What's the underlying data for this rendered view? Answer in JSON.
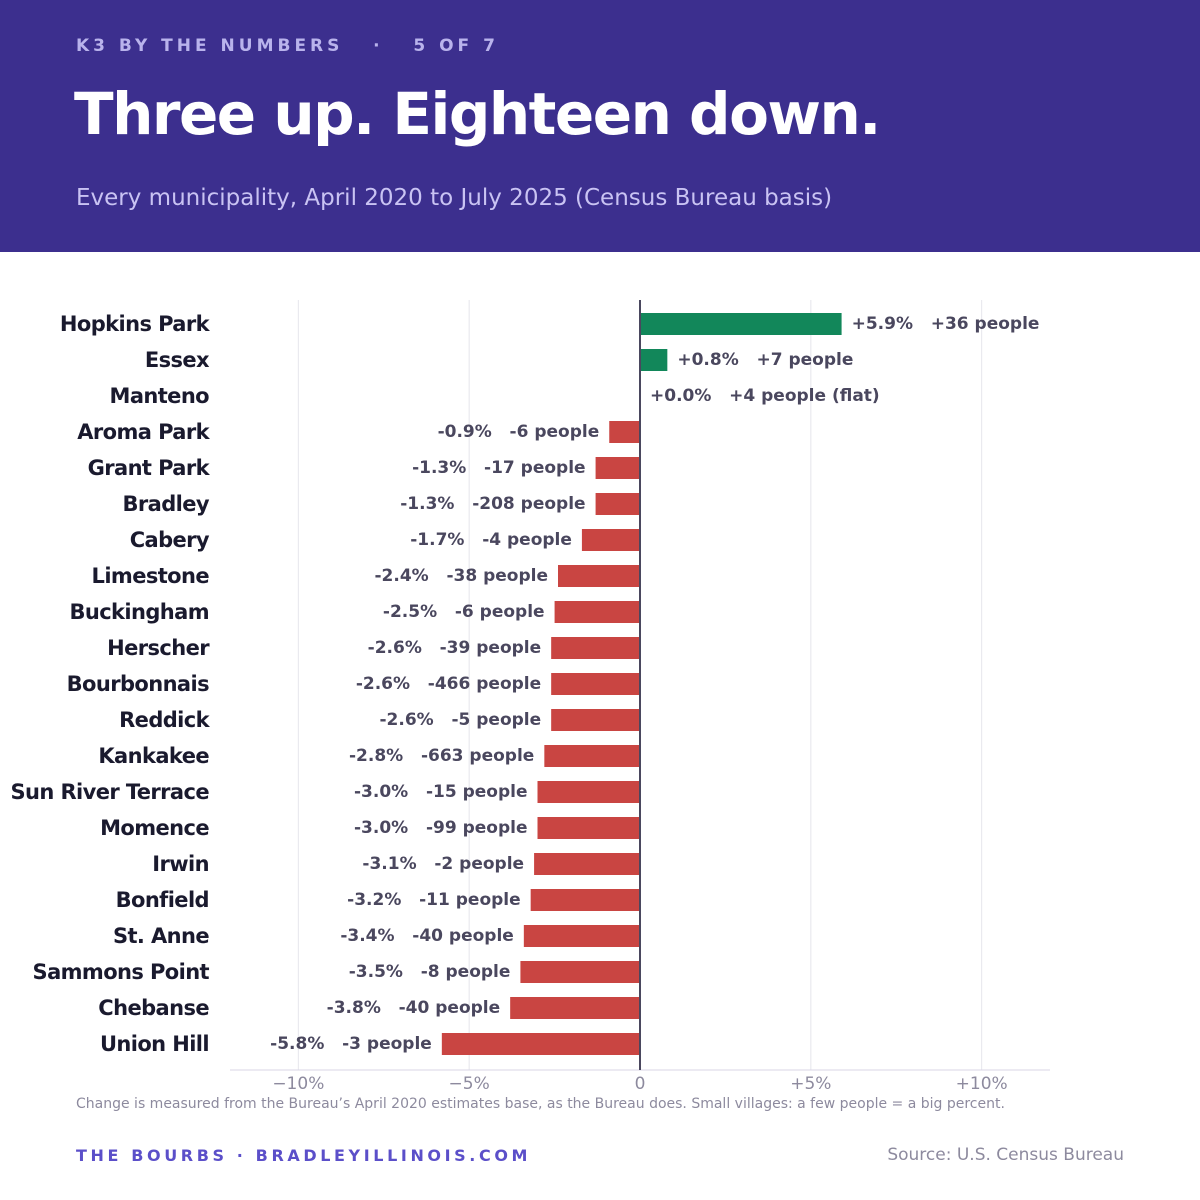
{
  "header": {
    "kicker": "K3 BY THE NUMBERS   ·   5 OF 7",
    "title": "Three up. Eighteen down.",
    "subtitle": "Every municipality, April 2020 to July 2025 (Census Bureau basis)"
  },
  "footer": {
    "note": "Change is measured from the Bureau’s April 2020 estimates base, as the Bureau does. Small villages: a few people = a big percent.",
    "brand": "THE BOURBS · BRADLEYILLINOIS.COM",
    "source": "Source: U.S. Census Bureau"
  },
  "colors": {
    "header_bg": "#3c2f8e",
    "positive": "#12875a",
    "negative": "#c94542",
    "label": "#1a1a2e",
    "value_label": "#4a475e",
    "tick": "#8d8a9e",
    "grid": "#e6e6ec",
    "zero_line": "#4a475e"
  },
  "chart_data": {
    "type": "bar",
    "orientation": "horizontal",
    "categories": [
      "Hopkins Park",
      "Essex",
      "Manteno",
      "Aroma Park",
      "Grant Park",
      "Bradley",
      "Cabery",
      "Limestone",
      "Buckingham",
      "Herscher",
      "Bourbonnais",
      "Reddick",
      "Kankakee",
      "Sun River Terrace",
      "Momence",
      "Irwin",
      "Bonfield",
      "St. Anne",
      "Sammons Point",
      "Chebanse",
      "Union Hill"
    ],
    "values": [
      5.9,
      0.8,
      0.0,
      -0.9,
      -1.3,
      -1.3,
      -1.7,
      -2.4,
      -2.5,
      -2.6,
      -2.6,
      -2.6,
      -2.8,
      -3.0,
      -3.0,
      -3.1,
      -3.2,
      -3.4,
      -3.5,
      -3.8,
      -5.8
    ],
    "labels": [
      "+5.9%   +36 people",
      "+0.8%   +7 people",
      "+0.0%   +4 people (flat)",
      "-0.9%   -6 people",
      "-1.3%   -17 people",
      "-1.3%   -208 people",
      "-1.7%   -4 people",
      "-2.4%   -38 people",
      "-2.5%   -6 people",
      "-2.6%   -39 people",
      "-2.6%   -466 people",
      "-2.6%   -5 people",
      "-2.8%   -663 people",
      "-3.0%   -15 people",
      "-3.0%   -99 people",
      "-3.1%   -2 people",
      "-3.2%   -11 people",
      "-3.4%   -40 people",
      "-3.5%   -8 people",
      "-3.8%   -40 people",
      "-5.8%   -3 people"
    ],
    "xlim": [
      -12,
      12
    ],
    "xticks": [
      -10,
      -5,
      0,
      5,
      10
    ],
    "xtick_labels": [
      "−10%",
      "−5%",
      "0",
      "+5%",
      "+10%"
    ],
    "grid": true
  }
}
